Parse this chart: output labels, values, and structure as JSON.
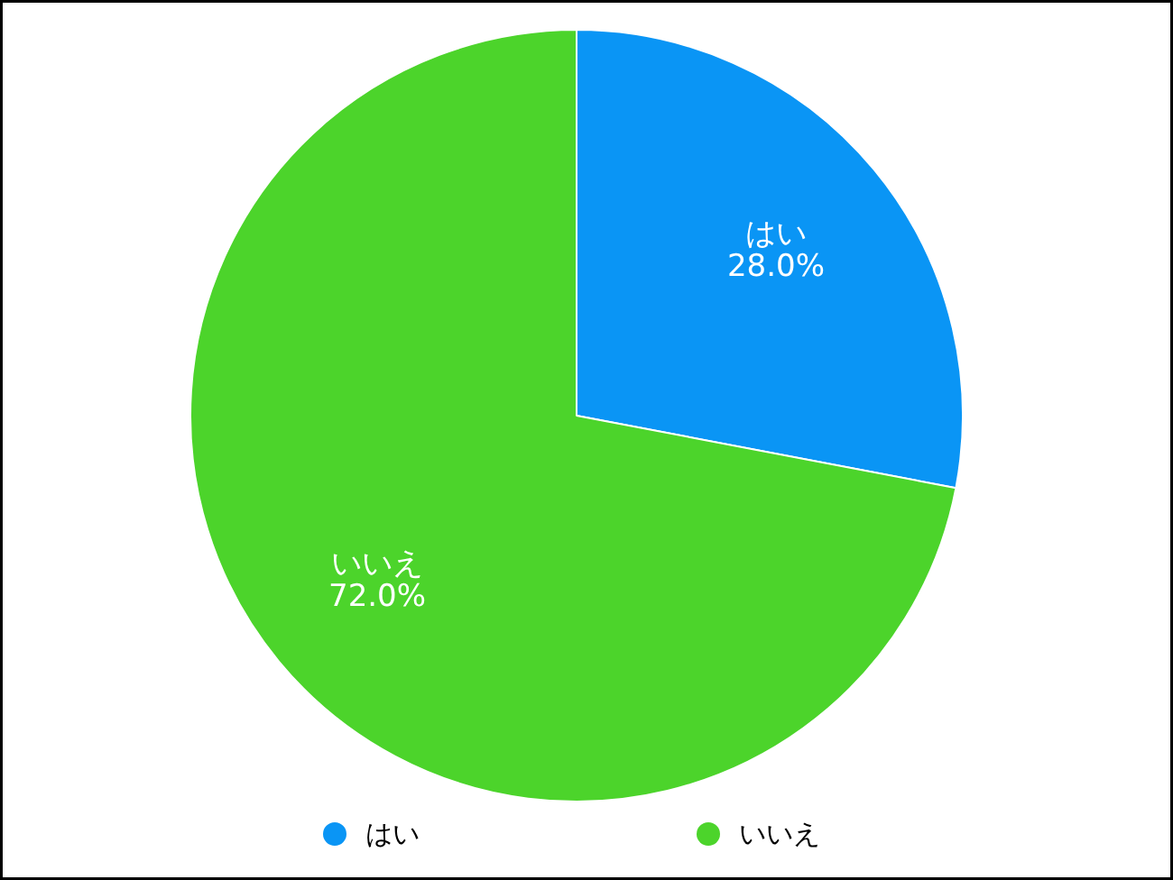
{
  "chart_data": {
    "type": "pie",
    "categories": [
      "はい",
      "いいえ"
    ],
    "values": [
      28.0,
      72.0
    ],
    "colors": [
      "#0a95f5",
      "#4cd42b"
    ],
    "value_labels": [
      "28.0%",
      "72.0%"
    ],
    "legend": "bottom"
  }
}
